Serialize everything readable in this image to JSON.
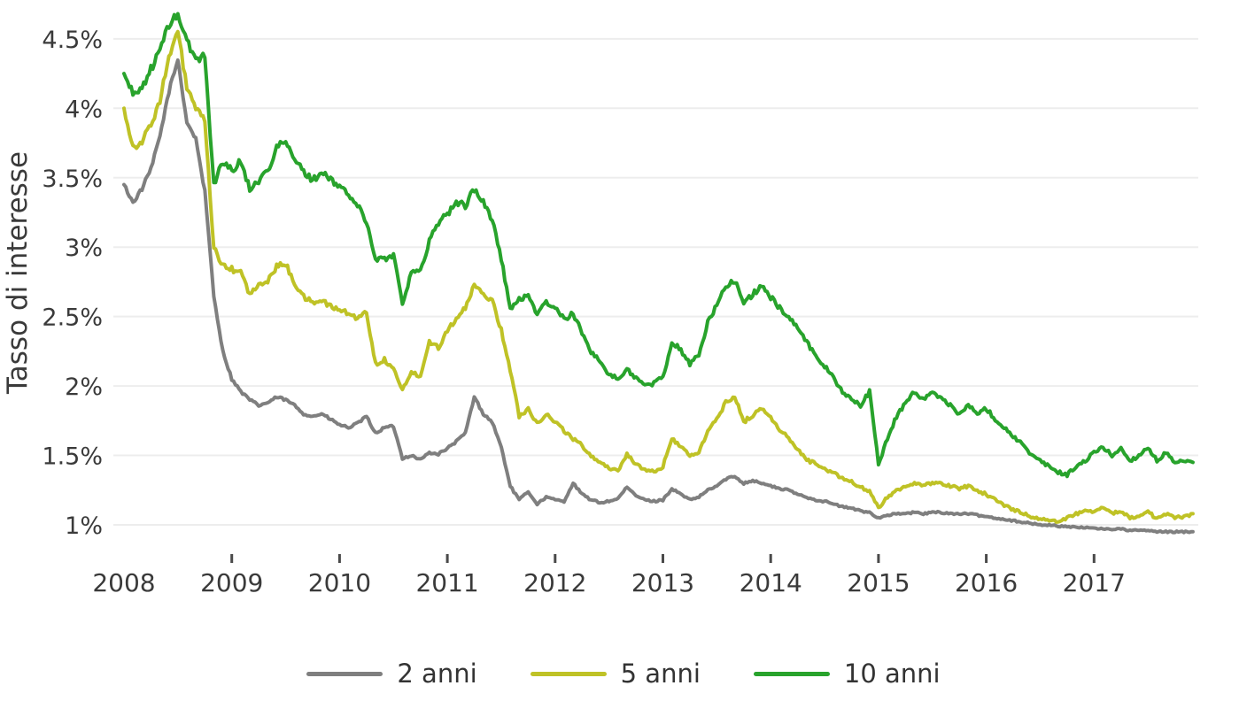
{
  "chart": {
    "y_axis_title": "Tasso di interesse",
    "background": "#ffffff",
    "gridline_color": "#ededed",
    "text_color": "#3a3a3a",
    "y_tick_labels": [
      "4.5%",
      "4%",
      "3.5%",
      "3%",
      "2.5%",
      "2%",
      "1.5%",
      "1%"
    ],
    "x_tick_labels": [
      "2008",
      "2009",
      "2010",
      "2011",
      "2012",
      "2013",
      "2014",
      "2015",
      "2016",
      "2017"
    ],
    "legend": [
      {
        "label": "2 anni",
        "color": "#7f7f7f"
      },
      {
        "label": "5 anni",
        "color": "#bfc226"
      },
      {
        "label": "10 anni",
        "color": "#28a32c"
      }
    ]
  },
  "chart_data": {
    "type": "line",
    "title": "",
    "xlabel": "",
    "ylabel": "Tasso di interesse",
    "x_unit": "month",
    "x_start": "2008-01",
    "x_end": "2017-12",
    "x_tick_years": [
      2008,
      2009,
      2010,
      2011,
      2012,
      2013,
      2014,
      2015,
      2016,
      2017
    ],
    "y_ticks_pct": [
      1,
      1.5,
      2,
      2.5,
      3,
      3.5,
      4,
      4.5
    ],
    "ylim": [
      0.9,
      4.75
    ],
    "grid": "horizontal",
    "legend_position": "bottom",
    "series": [
      {
        "name": "2 anni",
        "color": "#7f7f7f",
        "values": [
          3.45,
          3.32,
          3.42,
          3.56,
          3.8,
          4.12,
          4.35,
          3.9,
          3.78,
          3.4,
          2.65,
          2.25,
          2.05,
          1.96,
          1.9,
          1.86,
          1.88,
          1.92,
          1.9,
          1.86,
          1.8,
          1.78,
          1.8,
          1.76,
          1.72,
          1.7,
          1.73,
          1.78,
          1.66,
          1.7,
          1.71,
          1.48,
          1.5,
          1.47,
          1.52,
          1.51,
          1.55,
          1.6,
          1.66,
          1.92,
          1.8,
          1.74,
          1.56,
          1.28,
          1.18,
          1.24,
          1.15,
          1.2,
          1.18,
          1.17,
          1.3,
          1.22,
          1.18,
          1.16,
          1.17,
          1.19,
          1.27,
          1.21,
          1.18,
          1.17,
          1.18,
          1.26,
          1.22,
          1.18,
          1.2,
          1.25,
          1.28,
          1.33,
          1.35,
          1.3,
          1.32,
          1.3,
          1.28,
          1.26,
          1.25,
          1.22,
          1.2,
          1.18,
          1.17,
          1.15,
          1.13,
          1.12,
          1.1,
          1.09,
          1.05,
          1.07,
          1.08,
          1.08,
          1.09,
          1.08,
          1.09,
          1.09,
          1.08,
          1.08,
          1.08,
          1.07,
          1.06,
          1.05,
          1.04,
          1.03,
          1.02,
          1.01,
          1.0,
          1.0,
          0.99,
          0.99,
          0.98,
          0.98,
          0.98,
          0.97,
          0.97,
          0.97,
          0.96,
          0.96,
          0.96,
          0.95,
          0.95,
          0.95,
          0.95,
          0.95
        ]
      },
      {
        "name": "5 anni",
        "color": "#bfc226",
        "values": [
          4.0,
          3.72,
          3.76,
          3.88,
          4.06,
          4.36,
          4.55,
          4.15,
          4.0,
          3.9,
          3.0,
          2.86,
          2.84,
          2.82,
          2.66,
          2.72,
          2.76,
          2.86,
          2.88,
          2.74,
          2.64,
          2.6,
          2.62,
          2.57,
          2.55,
          2.52,
          2.49,
          2.53,
          2.16,
          2.19,
          2.12,
          1.98,
          2.09,
          2.08,
          2.32,
          2.28,
          2.4,
          2.49,
          2.56,
          2.72,
          2.66,
          2.62,
          2.4,
          2.12,
          1.78,
          1.84,
          1.73,
          1.8,
          1.74,
          1.68,
          1.62,
          1.57,
          1.5,
          1.45,
          1.41,
          1.39,
          1.51,
          1.44,
          1.39,
          1.38,
          1.42,
          1.62,
          1.57,
          1.49,
          1.52,
          1.68,
          1.76,
          1.88,
          1.93,
          1.74,
          1.79,
          1.84,
          1.77,
          1.69,
          1.62,
          1.54,
          1.47,
          1.44,
          1.41,
          1.37,
          1.34,
          1.31,
          1.27,
          1.24,
          1.12,
          1.2,
          1.25,
          1.28,
          1.3,
          1.28,
          1.3,
          1.3,
          1.28,
          1.26,
          1.28,
          1.25,
          1.22,
          1.18,
          1.14,
          1.11,
          1.09,
          1.06,
          1.04,
          1.03,
          1.03,
          1.05,
          1.08,
          1.1,
          1.1,
          1.12,
          1.08,
          1.1,
          1.05,
          1.07,
          1.1,
          1.04,
          1.08,
          1.05,
          1.06,
          1.08
        ]
      },
      {
        "name": "10 anni",
        "color": "#28a32c",
        "values": [
          4.25,
          4.1,
          4.15,
          4.28,
          4.42,
          4.6,
          4.68,
          4.48,
          4.35,
          4.38,
          3.45,
          3.62,
          3.55,
          3.62,
          3.42,
          3.48,
          3.55,
          3.72,
          3.76,
          3.62,
          3.55,
          3.48,
          3.54,
          3.48,
          3.44,
          3.38,
          3.3,
          3.18,
          2.92,
          2.91,
          2.95,
          2.6,
          2.82,
          2.82,
          3.05,
          3.18,
          3.24,
          3.32,
          3.3,
          3.42,
          3.32,
          3.2,
          2.92,
          2.55,
          2.62,
          2.66,
          2.52,
          2.6,
          2.56,
          2.48,
          2.52,
          2.38,
          2.25,
          2.18,
          2.08,
          2.05,
          2.12,
          2.06,
          2.0,
          2.02,
          2.06,
          2.32,
          2.26,
          2.16,
          2.22,
          2.46,
          2.58,
          2.72,
          2.76,
          2.6,
          2.66,
          2.72,
          2.64,
          2.56,
          2.5,
          2.42,
          2.32,
          2.22,
          2.14,
          2.06,
          1.96,
          1.9,
          1.86,
          1.96,
          1.44,
          1.62,
          1.78,
          1.88,
          1.96,
          1.9,
          1.95,
          1.92,
          1.86,
          1.8,
          1.86,
          1.8,
          1.84,
          1.76,
          1.7,
          1.64,
          1.58,
          1.5,
          1.46,
          1.42,
          1.38,
          1.36,
          1.42,
          1.46,
          1.52,
          1.56,
          1.5,
          1.55,
          1.46,
          1.5,
          1.56,
          1.46,
          1.52,
          1.44,
          1.46,
          1.45
        ]
      }
    ]
  }
}
